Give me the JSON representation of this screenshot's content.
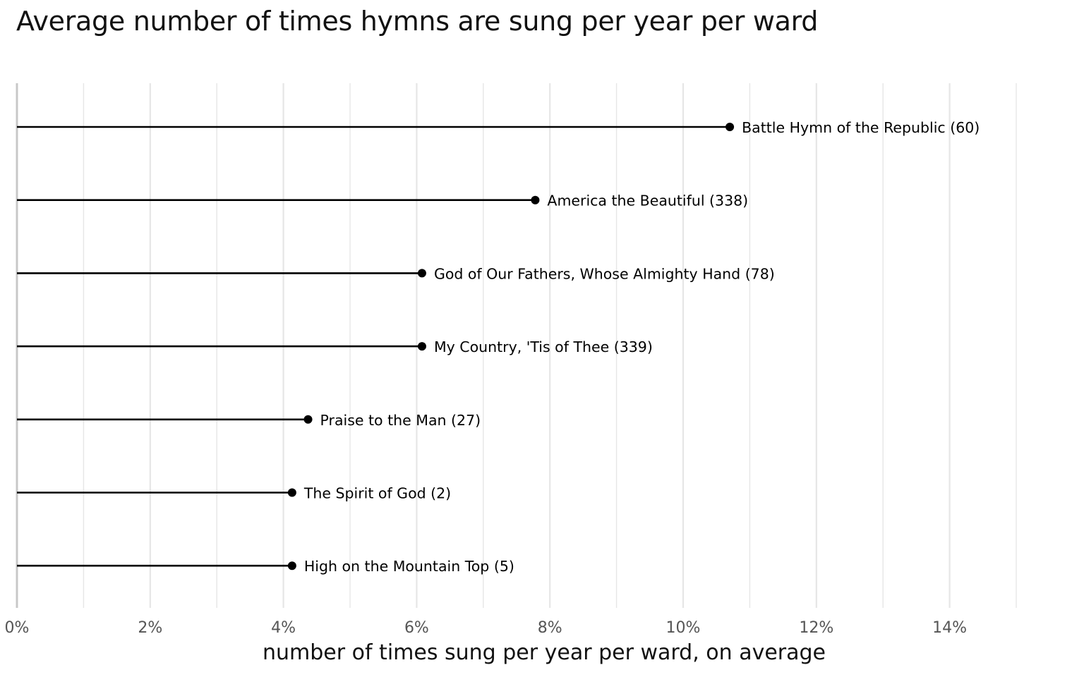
{
  "chart_data": {
    "type": "lollipop",
    "title": "Average number of times hymns are sung per year per ward",
    "xlabel": "number of times sung per year per ward, on average",
    "ylabel": "",
    "xlim": [
      0,
      15
    ],
    "x_ticks": [
      0,
      2,
      4,
      6,
      8,
      10,
      12,
      14
    ],
    "x_tick_labels": [
      "0%",
      "2%",
      "4%",
      "6%",
      "8%",
      "10%",
      "12%",
      "14%"
    ],
    "grid": {
      "vertical_major": true,
      "vertical_minor": true,
      "horizontal": false
    },
    "legend": "none",
    "colors": {
      "marks": "#000000",
      "grid": "#e6e6e6",
      "axis": "#c8c8c8"
    },
    "points": [
      {
        "label": "Battle Hymn of the Republic (60)",
        "value": 10.7
      },
      {
        "label": "America the Beautiful (338)",
        "value": 7.78
      },
      {
        "label": "God of Our Fathers, Whose Almighty Hand (78)",
        "value": 6.08
      },
      {
        "label": "My Country, 'Tis of Thee (339)",
        "value": 6.08
      },
      {
        "label": "Praise to the Man (27)",
        "value": 4.37
      },
      {
        "label": "The Spirit of God (2)",
        "value": 4.13
      },
      {
        "label": "High on the Mountain Top (5)",
        "value": 4.13
      }
    ]
  }
}
